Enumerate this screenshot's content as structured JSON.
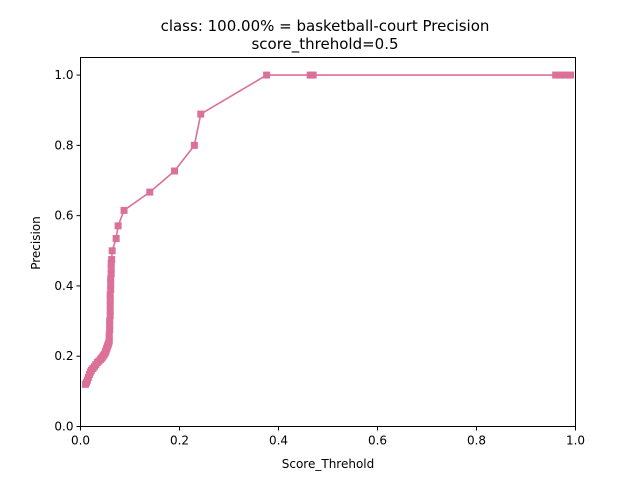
{
  "chart_data": {
    "type": "line",
    "title": "class: 100.00% = basketball-court Precision",
    "subtitle": "score_threhold=0.5",
    "xlabel": "Score_Threhold",
    "ylabel": "Precision",
    "xlim": [
      0.0,
      1.0
    ],
    "ylim": [
      0.0,
      1.05
    ],
    "xticks": [
      "0.0",
      "0.2",
      "0.4",
      "0.6",
      "0.8",
      "1.0"
    ],
    "yticks": [
      "0.0",
      "0.2",
      "0.4",
      "0.6",
      "0.8",
      "1.0"
    ],
    "grid": false,
    "marker": "square",
    "color": "#db7099",
    "series": [
      {
        "x": [
          0.01,
          0.012,
          0.014,
          0.016,
          0.018,
          0.02,
          0.022,
          0.025,
          0.028,
          0.031,
          0.034,
          0.037,
          0.04,
          0.042,
          0.044,
          0.046,
          0.048,
          0.05,
          0.051,
          0.052,
          0.053,
          0.054,
          0.055,
          0.056,
          0.057,
          0.058,
          0.058,
          0.058,
          0.059,
          0.059,
          0.059,
          0.06,
          0.06,
          0.06,
          0.06,
          0.06,
          0.061,
          0.061,
          0.061,
          0.062,
          0.062,
          0.062,
          0.063,
          0.064,
          0.072,
          0.076,
          0.088,
          0.14,
          0.19,
          0.23,
          0.243,
          0.376,
          0.464,
          0.47,
          0.96,
          0.97,
          0.98,
          0.99
        ],
        "y": [
          0.12,
          0.125,
          0.132,
          0.14,
          0.148,
          0.155,
          0.16,
          0.165,
          0.17,
          0.176,
          0.182,
          0.186,
          0.19,
          0.193,
          0.197,
          0.201,
          0.205,
          0.21,
          0.214,
          0.218,
          0.222,
          0.226,
          0.23,
          0.234,
          0.238,
          0.243,
          0.25,
          0.262,
          0.275,
          0.288,
          0.3,
          0.315,
          0.33,
          0.345,
          0.36,
          0.375,
          0.39,
          0.405,
          0.42,
          0.435,
          0.45,
          0.465,
          0.475,
          0.5,
          0.535,
          0.571,
          0.615,
          0.667,
          0.727,
          0.8,
          0.889,
          1.0,
          1.0,
          1.0,
          1.0,
          1.0,
          1.0,
          1.0
        ]
      }
    ]
  }
}
